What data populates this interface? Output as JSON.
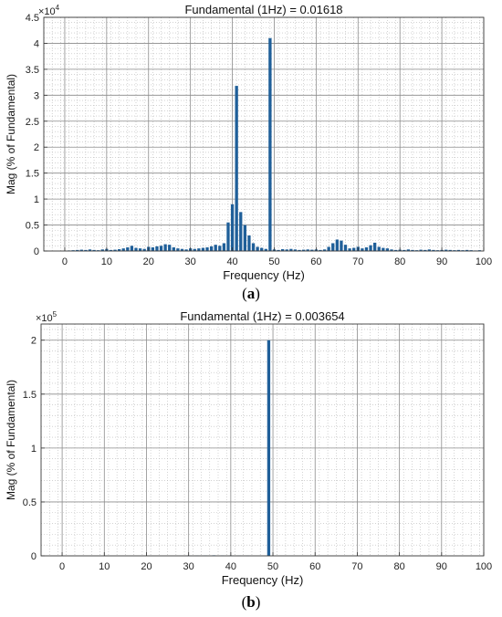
{
  "chart_data": [
    {
      "type": "bar",
      "title": "Fundamental (1Hz) = 0.01618",
      "xlabel": "Frequency (Hz)",
      "ylabel": "Mag (% of Fundamental)",
      "y_multiplier": "×10^4",
      "xlim": [
        -5,
        100
      ],
      "ylim": [
        0,
        45000
      ],
      "x_ticks": [
        0,
        10,
        20,
        30,
        40,
        50,
        60,
        70,
        80,
        90,
        100
      ],
      "y_ticks": [
        0,
        5000,
        10000,
        15000,
        20000,
        25000,
        30000,
        35000,
        40000,
        45000
      ],
      "y_tick_labels": [
        "0",
        "0.5",
        "1",
        "1.5",
        "2",
        "2.5",
        "3",
        "3.5",
        "4",
        "4.5"
      ],
      "grid": true,
      "bar_color": "#1f5f99",
      "x": [
        1,
        2,
        3,
        4,
        5,
        6,
        7,
        8,
        9,
        10,
        11,
        12,
        13,
        14,
        15,
        16,
        17,
        18,
        19,
        20,
        21,
        22,
        23,
        24,
        25,
        26,
        27,
        28,
        29,
        30,
        31,
        32,
        33,
        34,
        35,
        36,
        37,
        38,
        39,
        40,
        41,
        42,
        43,
        44,
        45,
        46,
        47,
        48,
        49,
        50,
        51,
        52,
        53,
        54,
        55,
        56,
        57,
        58,
        59,
        60,
        61,
        62,
        63,
        64,
        65,
        66,
        67,
        68,
        69,
        70,
        71,
        72,
        73,
        74,
        75,
        76,
        77,
        78,
        79,
        80,
        81,
        82,
        83,
        84,
        85,
        86,
        87,
        88,
        89,
        90,
        91,
        92,
        93,
        94,
        95,
        96,
        97,
        98,
        99
      ],
      "values": [
        100,
        150,
        200,
        250,
        200,
        300,
        200,
        150,
        300,
        400,
        200,
        250,
        350,
        500,
        700,
        1000,
        600,
        500,
        400,
        800,
        700,
        900,
        1000,
        1300,
        1200,
        700,
        500,
        400,
        300,
        500,
        400,
        500,
        600,
        700,
        900,
        1200,
        1000,
        1500,
        5500,
        9000,
        31800,
        7500,
        5000,
        3000,
        1500,
        800,
        600,
        400,
        41000,
        300,
        200,
        350,
        300,
        400,
        300,
        200,
        250,
        300,
        250,
        300,
        200,
        300,
        800,
        1500,
        2200,
        2000,
        1200,
        500,
        600,
        800,
        500,
        700,
        1100,
        1600,
        800,
        600,
        500,
        300,
        200,
        250,
        200,
        300,
        200,
        150,
        250,
        200,
        300,
        200,
        150,
        200,
        250,
        200,
        150,
        200,
        150,
        200,
        150,
        100,
        150
      ]
    },
    {
      "type": "bar",
      "title": "Fundamental (1Hz) = 0.003654",
      "xlabel": "Frequency (Hz)",
      "ylabel": "Mag (% of Fundamental)",
      "y_multiplier": "×10^5",
      "xlim": [
        -5,
        100
      ],
      "ylim": [
        0,
        215000
      ],
      "x_ticks": [
        0,
        10,
        20,
        30,
        40,
        50,
        60,
        70,
        80,
        90,
        100
      ],
      "y_ticks": [
        0,
        50000,
        100000,
        150000,
        200000
      ],
      "y_tick_labels": [
        "0",
        "0.5",
        "1",
        "1.5",
        "2"
      ],
      "grid": true,
      "bar_color": "#1f5f99",
      "x": [
        30,
        32,
        34,
        36,
        38,
        40,
        42,
        44,
        49
      ],
      "values": [
        300,
        300,
        400,
        500,
        400,
        350,
        300,
        250,
        200000
      ]
    }
  ],
  "captions": [
    "(a)",
    "(b)"
  ],
  "caption_letters": [
    "a",
    "b"
  ]
}
